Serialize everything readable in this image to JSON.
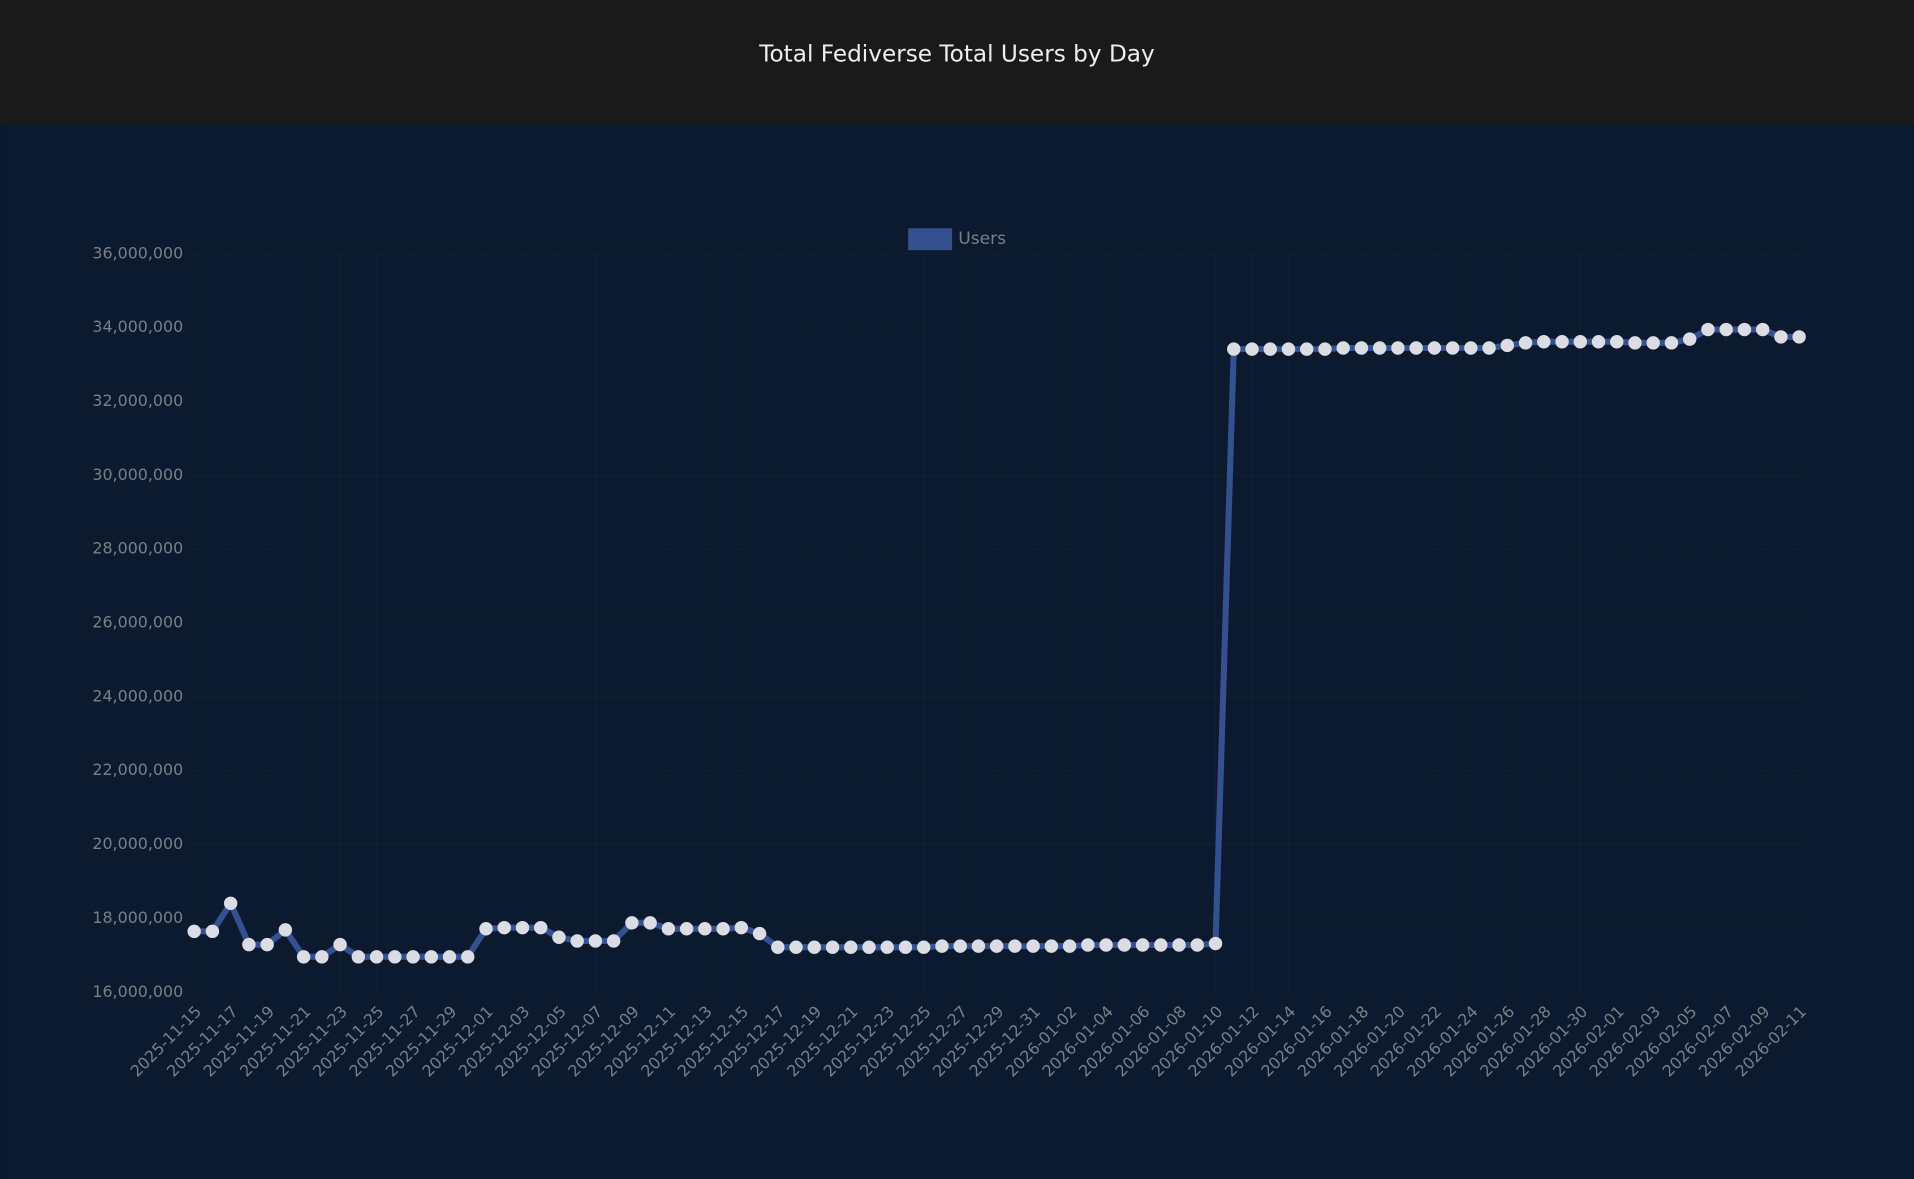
{
  "header": {
    "title": "Total Fediverse Total Users by Day"
  },
  "chart_data": {
    "type": "line",
    "categories": [
      "2025-11-15",
      null,
      "2025-11-17",
      null,
      "2025-11-19",
      null,
      "2025-11-21",
      null,
      "2025-11-23",
      null,
      "2025-11-25",
      null,
      "2025-11-27",
      null,
      "2025-11-29",
      null,
      "2025-12-01",
      null,
      "2025-12-03",
      null,
      "2025-12-05",
      null,
      "2025-12-07",
      null,
      "2025-12-09",
      null,
      "2025-12-11",
      null,
      "2025-12-13",
      null,
      "2025-12-15",
      null,
      "2025-12-17",
      null,
      "2025-12-19",
      null,
      "2025-12-21",
      null,
      "2025-12-23",
      null,
      "2025-12-25",
      null,
      "2025-12-27",
      null,
      "2025-12-29",
      null,
      "2025-12-31",
      null,
      "2026-01-02",
      null,
      "2026-01-04",
      null,
      "2026-01-06",
      null,
      "2026-01-08",
      null,
      "2026-01-10",
      null,
      "2026-01-12",
      null,
      "2026-01-14",
      null,
      "2026-01-16",
      null,
      "2026-01-18",
      null,
      "2026-01-20",
      null,
      "2026-01-22",
      null,
      "2026-01-24",
      null,
      "2026-01-26",
      null,
      "2026-01-28",
      null,
      "2026-01-30",
      null,
      "2026-02-01",
      null,
      "2026-02-03",
      null,
      "2026-02-05",
      null,
      "2026-02-07",
      null,
      "2026-02-09",
      null,
      "2026-02-11"
    ],
    "series": [
      {
        "name": "Users",
        "color": "#34508f",
        "values": [
          17650000,
          17650000,
          18410000,
          17290000,
          17290000,
          17690000,
          16960000,
          16960000,
          17290000,
          16960000,
          16960000,
          16960000,
          16960000,
          16960000,
          16960000,
          16960000,
          17720000,
          17750000,
          17750000,
          17750000,
          17490000,
          17390000,
          17390000,
          17390000,
          17880000,
          17880000,
          17720000,
          17720000,
          17720000,
          17720000,
          17750000,
          17590000,
          17220000,
          17220000,
          17220000,
          17220000,
          17220000,
          17220000,
          17220000,
          17220000,
          17220000,
          17250000,
          17250000,
          17250000,
          17250000,
          17250000,
          17250000,
          17250000,
          17250000,
          17280000,
          17280000,
          17280000,
          17280000,
          17280000,
          17280000,
          17280000,
          17320000,
          33420000,
          33420000,
          33420000,
          33420000,
          33420000,
          33420000,
          33450000,
          33450000,
          33450000,
          33450000,
          33450000,
          33450000,
          33450000,
          33450000,
          33450000,
          33520000,
          33590000,
          33620000,
          33620000,
          33620000,
          33620000,
          33620000,
          33590000,
          33590000,
          33590000,
          33690000,
          33950000,
          33950000,
          33950000,
          33950000,
          33750000,
          33750000
        ]
      }
    ],
    "ylim": [
      16000000,
      36000000
    ],
    "yticks": [
      {
        "value": 16000000,
        "label": "16,000,000"
      },
      {
        "value": 18000000,
        "label": "18,000,000"
      },
      {
        "value": 20000000,
        "label": "20,000,000"
      },
      {
        "value": 22000000,
        "label": "22,000,000"
      },
      {
        "value": 24000000,
        "label": "24,000,000"
      },
      {
        "value": 26000000,
        "label": "26,000,000"
      },
      {
        "value": 28000000,
        "label": "28,000,000"
      },
      {
        "value": 30000000,
        "label": "30,000,000"
      },
      {
        "value": 32000000,
        "label": "32,000,000"
      },
      {
        "value": 34000000,
        "label": "34,000,000"
      },
      {
        "value": 36000000,
        "label": "36,000,000"
      }
    ],
    "grid": true,
    "legend": "top"
  }
}
